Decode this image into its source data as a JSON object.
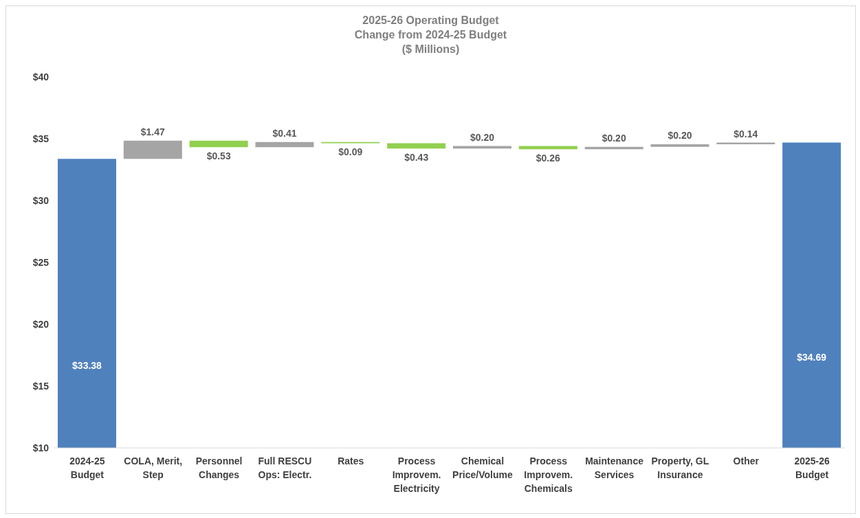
{
  "chart_data": {
    "type": "bar",
    "title": "2025-26 Operating Budget",
    "subtitle": "Change from 2024-25 Budget\n($ Millions)",
    "categories": [
      "2024-25 Budget",
      "COLA, Merit, Step",
      "Personnel Changes",
      "Full RESCU Ops: Electr.",
      "Rates",
      "Process Improvem. Electricity",
      "Chemical Price/Volume",
      "Process Improvem. Chemicals",
      "Maintenance Services",
      "Property, GL Insurance",
      "Other",
      "2025-26 Budget"
    ],
    "values": [
      33.38,
      1.47,
      -0.53,
      0.41,
      -0.09,
      -0.43,
      0.2,
      -0.26,
      0.2,
      0.2,
      0.14,
      34.69
    ],
    "base": [
      0,
      33.38,
      34.85,
      34.32,
      34.73,
      34.64,
      34.21,
      34.41,
      34.15,
      34.35,
      34.55,
      0
    ],
    "colors": [
      "#4f81bd",
      "#a5a5a5",
      "#92d050",
      "#a5a5a5",
      "#92d050",
      "#92d050",
      "#a5a5a5",
      "#92d050",
      "#a5a5a5",
      "#a5a5a5",
      "#a5a5a5",
      "#4f81bd"
    ],
    "value_labels": [
      "$33.38",
      "$1.47",
      "$0.53",
      "$0.41",
      "$0.09",
      "$0.43",
      "$0.20",
      "$0.26",
      "$0.20",
      "$0.20",
      "$0.14",
      "$34.69"
    ],
    "ylim": [
      10,
      40
    ],
    "yticks": [
      {
        "value": 10,
        "label": "$10"
      },
      {
        "value": 15,
        "label": "$15"
      },
      {
        "value": 20,
        "label": "$20"
      },
      {
        "value": 25,
        "label": "$25"
      },
      {
        "value": 30,
        "label": "$30"
      },
      {
        "value": 35,
        "label": "$35"
      },
      {
        "value": 40,
        "label": "$40"
      }
    ],
    "grid": false,
    "legend": false
  }
}
